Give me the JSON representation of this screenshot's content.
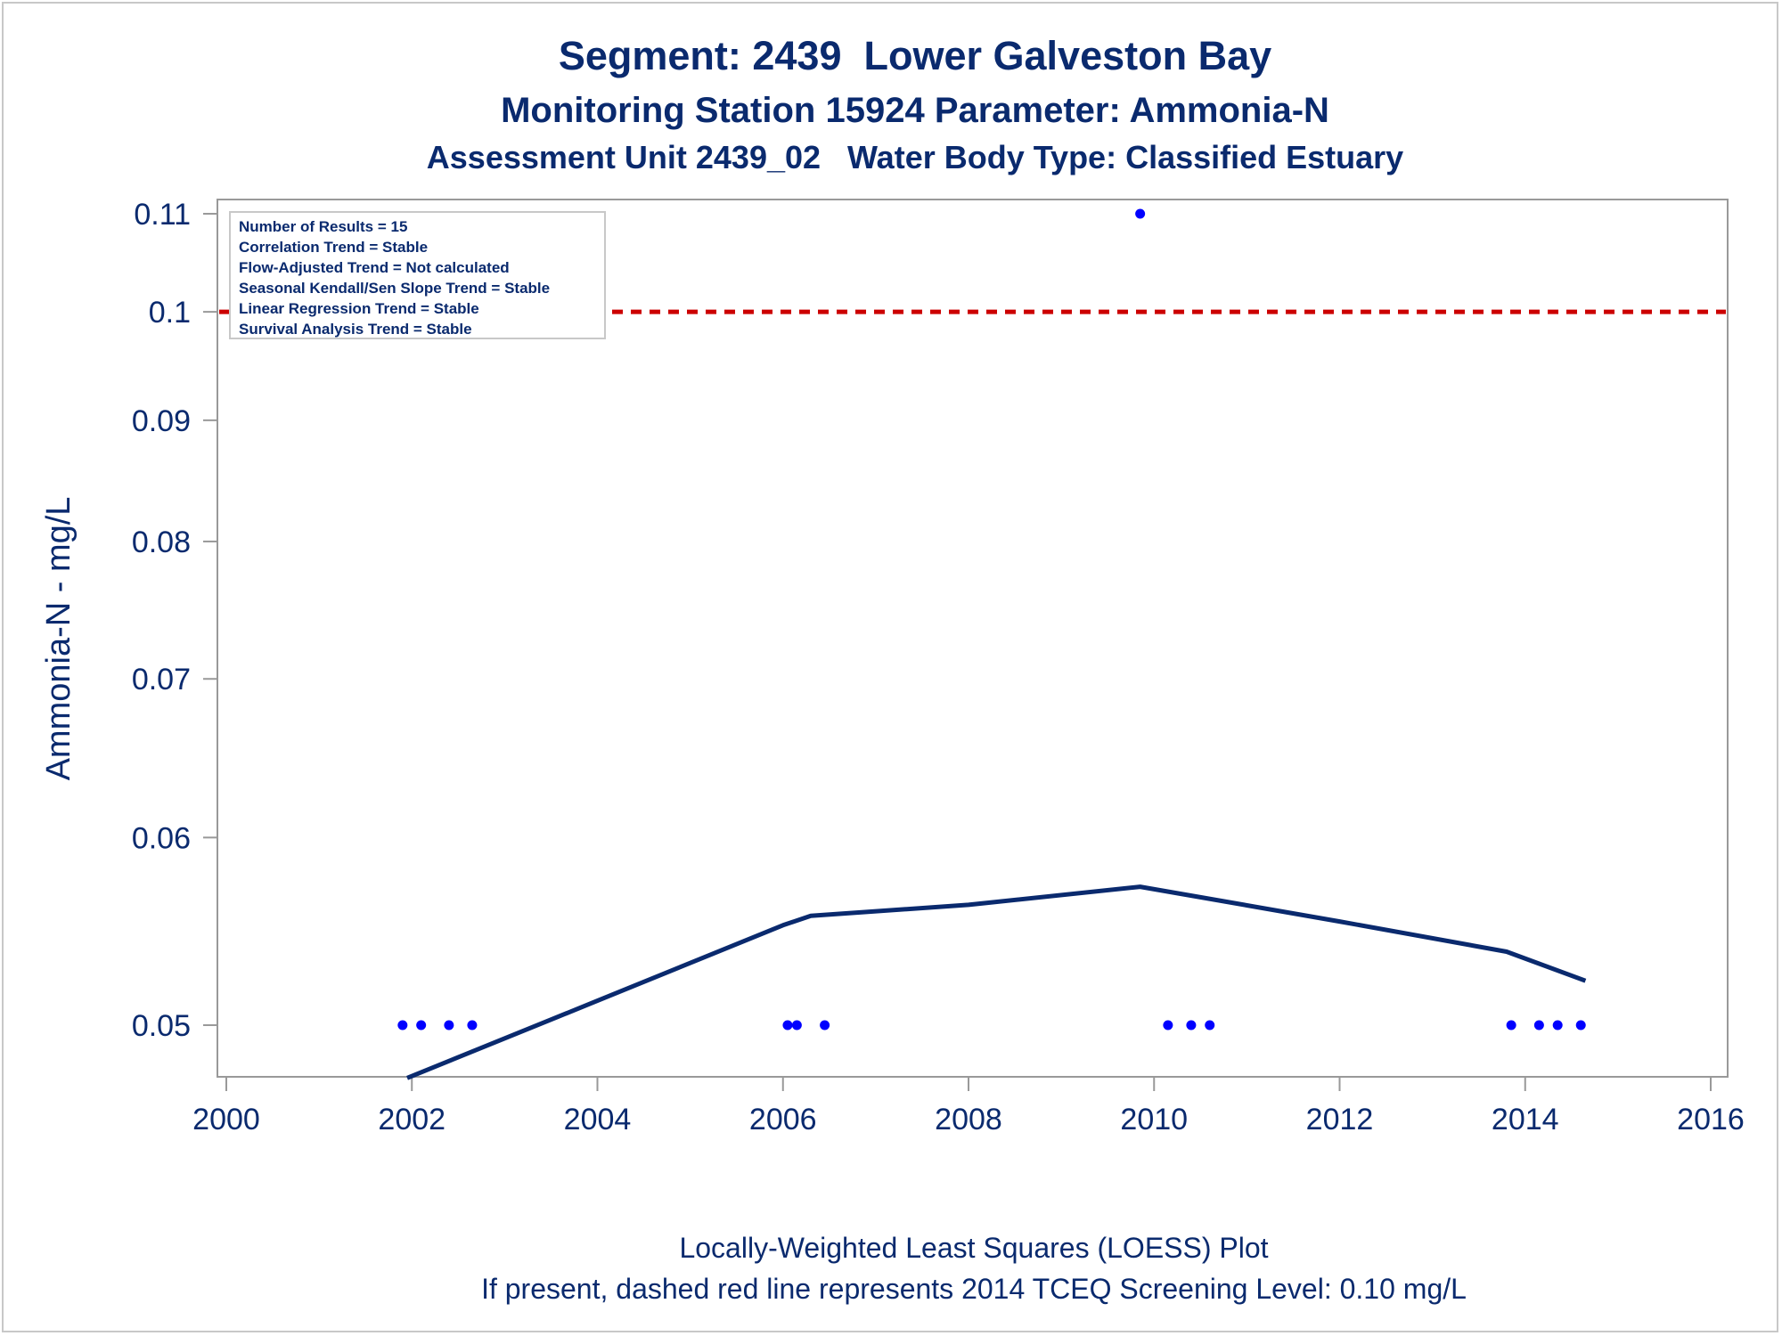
{
  "chart_data": {
    "type": "scatter",
    "title": "Segment: 2439  Lower Galveston Bay",
    "subtitle1": "Monitoring Station 15924 Parameter: Ammonia-N",
    "subtitle2": "Assessment Unit 2439_02   Water Body Type: Classified Estuary",
    "xlabel": "",
    "ylabel": "Ammonia-N - mg/L",
    "xlim": [
      2000,
      2016
    ],
    "y_scale": "log",
    "ylim": [
      0.0475,
      0.112
    ],
    "x_ticks": [
      "2000",
      "2002",
      "2004",
      "2006",
      "2008",
      "2010",
      "2012",
      "2014",
      "2016"
    ],
    "y_ticks": [
      {
        "value": 0.05,
        "label": "0.05"
      },
      {
        "value": 0.06,
        "label": "0.06"
      },
      {
        "value": 0.07,
        "label": "0.07"
      },
      {
        "value": 0.08,
        "label": "0.08"
      },
      {
        "value": 0.09,
        "label": "0.09"
      },
      {
        "value": 0.1,
        "label": "0.1"
      },
      {
        "value": 0.11,
        "label": "0.11"
      }
    ],
    "points": [
      {
        "x": 2001.9,
        "y": 0.05
      },
      {
        "x": 2002.1,
        "y": 0.05
      },
      {
        "x": 2002.4,
        "y": 0.05
      },
      {
        "x": 2002.65,
        "y": 0.05
      },
      {
        "x": 2006.05,
        "y": 0.05
      },
      {
        "x": 2006.15,
        "y": 0.05
      },
      {
        "x": 2006.45,
        "y": 0.05
      },
      {
        "x": 2009.85,
        "y": 0.11
      },
      {
        "x": 2010.15,
        "y": 0.05
      },
      {
        "x": 2010.4,
        "y": 0.05
      },
      {
        "x": 2010.6,
        "y": 0.05
      },
      {
        "x": 2013.85,
        "y": 0.05
      },
      {
        "x": 2014.15,
        "y": 0.05
      },
      {
        "x": 2014.35,
        "y": 0.05
      },
      {
        "x": 2014.6,
        "y": 0.05
      }
    ],
    "loess": [
      {
        "x": 2001.95,
        "y": 0.0475
      },
      {
        "x": 2004.0,
        "y": 0.0512
      },
      {
        "x": 2006.0,
        "y": 0.0551
      },
      {
        "x": 2006.3,
        "y": 0.0556
      },
      {
        "x": 2008.0,
        "y": 0.0562
      },
      {
        "x": 2009.85,
        "y": 0.0572
      },
      {
        "x": 2012.0,
        "y": 0.0553
      },
      {
        "x": 2013.8,
        "y": 0.0537
      },
      {
        "x": 2014.65,
        "y": 0.0522
      }
    ],
    "reference_line": {
      "y": 0.1,
      "style": "dashed",
      "color": "#cc0000"
    },
    "stats": [
      "Number of Results = 15",
      "Correlation Trend = Stable",
      "Flow-Adjusted Trend = Not calculated",
      "Seasonal Kendall/Sen Slope Trend = Stable",
      "Linear Regression Trend = Stable",
      "Survival Analysis Trend = Stable"
    ],
    "footer_lines": [
      "Locally-Weighted Least Squares (LOESS) Plot",
      "If present, dashed red line represents 2014 TCEQ Screening Level: 0.10 mg/L"
    ],
    "colors": {
      "text": "#0a2a6e",
      "points": "#0000ff",
      "loess": "#0a2a6e",
      "reference": "#cc0000",
      "axis": "#999999"
    }
  }
}
